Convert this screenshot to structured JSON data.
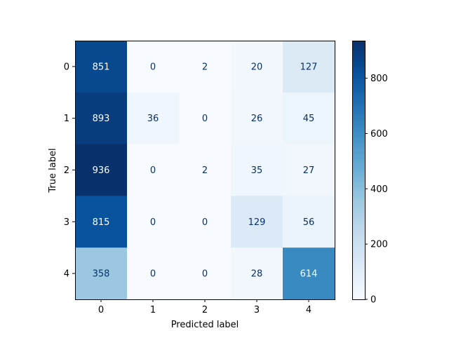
{
  "chart_data": {
    "type": "heatmap",
    "title": "",
    "xlabel": "Predicted label",
    "ylabel": "True label",
    "x_categories": [
      "0",
      "1",
      "2",
      "3",
      "4"
    ],
    "y_categories": [
      "0",
      "1",
      "2",
      "3",
      "4"
    ],
    "values": [
      [
        851,
        0,
        2,
        20,
        127
      ],
      [
        893,
        36,
        0,
        26,
        45
      ],
      [
        936,
        0,
        2,
        35,
        27
      ],
      [
        815,
        0,
        0,
        129,
        56
      ],
      [
        358,
        0,
        0,
        28,
        614
      ]
    ],
    "colormap": "Blues",
    "color_range": [
      0,
      936
    ],
    "colorbar_ticks": [
      0,
      200,
      400,
      600,
      800
    ],
    "colorbar_tick_labels": [
      "0",
      "200",
      "400",
      "600",
      "800"
    ],
    "text_color_light": "#ffffff",
    "text_color_dark": "#08306b",
    "grid": false,
    "legend": "colorbar-right"
  }
}
